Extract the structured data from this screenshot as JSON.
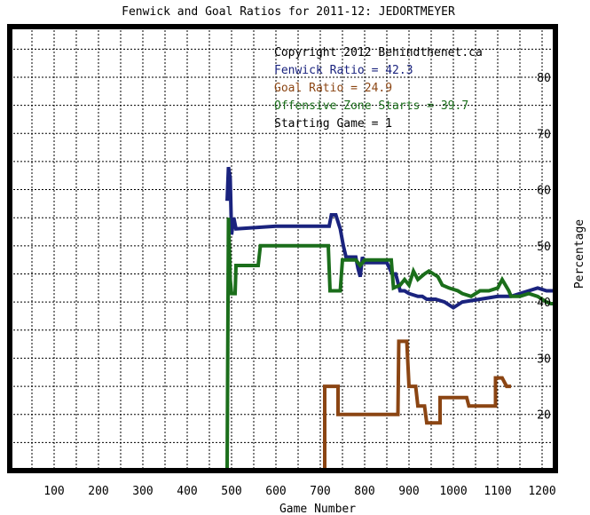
{
  "chart_data": {
    "type": "line",
    "title": "Fenwick and Goal Ratios for 2011-12: JEDORTMEYER",
    "xlabel": "Game Number",
    "ylabel": "Percentage",
    "xlim": [
      0,
      1230
    ],
    "ylim": [
      10,
      89
    ],
    "x_ticks": [
      100,
      200,
      300,
      400,
      500,
      600,
      700,
      800,
      900,
      1000,
      1100,
      1200
    ],
    "y_ticks": [
      20,
      30,
      40,
      50,
      60,
      70,
      80
    ],
    "x_grid": [
      50,
      150,
      250,
      350,
      450,
      550,
      650,
      750,
      850,
      950,
      1050,
      1150
    ],
    "y_grid": [
      15,
      20,
      25,
      30,
      35,
      40,
      45,
      50,
      55,
      60,
      65,
      70,
      75,
      80,
      85
    ],
    "grid": true,
    "legend": [
      {
        "text": "Copyright 2012 Behindthenet.ca",
        "color": "#000000"
      },
      {
        "text": "Fenwick Ratio = 42.3",
        "color": "#1a237e"
      },
      {
        "text": "Goal Ratio = 24.9",
        "color": "#8b4513"
      },
      {
        "text": "Offensive Zone Starts = 39.7",
        "color": "#1b6e1b"
      },
      {
        "text": "Starting Game = 1",
        "color": "#000000"
      }
    ],
    "series": [
      {
        "color": "#1a237e",
        "points": [
          [
            490,
            58
          ],
          [
            493,
            64
          ],
          [
            497,
            62
          ],
          [
            500,
            52
          ],
          [
            505,
            55
          ],
          [
            510,
            53
          ],
          [
            600,
            53.5
          ],
          [
            700,
            53.5
          ],
          [
            720,
            53.5
          ],
          [
            725,
            55.5
          ],
          [
            735,
            55.5
          ],
          [
            745,
            53
          ],
          [
            752,
            50
          ],
          [
            758,
            48
          ],
          [
            765,
            48
          ],
          [
            770,
            48
          ],
          [
            780,
            48
          ],
          [
            785,
            46
          ],
          [
            790,
            44.5
          ],
          [
            795,
            48
          ],
          [
            800,
            47
          ],
          [
            850,
            47
          ],
          [
            862,
            45
          ],
          [
            870,
            45
          ],
          [
            875,
            43.5
          ],
          [
            880,
            42
          ],
          [
            890,
            42
          ],
          [
            900,
            41.5
          ],
          [
            920,
            41
          ],
          [
            930,
            41
          ],
          [
            940,
            40.5
          ],
          [
            960,
            40.5
          ],
          [
            980,
            40
          ],
          [
            1000,
            39
          ],
          [
            1020,
            40
          ],
          [
            1060,
            40.5
          ],
          [
            1100,
            41
          ],
          [
            1130,
            41
          ],
          [
            1150,
            41.5
          ],
          [
            1170,
            42
          ],
          [
            1190,
            42.5
          ],
          [
            1210,
            42
          ],
          [
            1230,
            42
          ]
        ]
      },
      {
        "color": "#1b6e1b",
        "points": [
          [
            490,
            10
          ],
          [
            493,
            55
          ],
          [
            497,
            44
          ],
          [
            500,
            41.5
          ],
          [
            508,
            41.5
          ],
          [
            510,
            46.5
          ],
          [
            560,
            46.5
          ],
          [
            565,
            50
          ],
          [
            700,
            50
          ],
          [
            718,
            50
          ],
          [
            722,
            42
          ],
          [
            745,
            42
          ],
          [
            750,
            47.5
          ],
          [
            780,
            47.5
          ],
          [
            790,
            46.5
          ],
          [
            800,
            47.5
          ],
          [
            860,
            47.5
          ],
          [
            865,
            42.5
          ],
          [
            880,
            43
          ],
          [
            890,
            44
          ],
          [
            900,
            43
          ],
          [
            910,
            45.5
          ],
          [
            920,
            44
          ],
          [
            935,
            45
          ],
          [
            945,
            45.5
          ],
          [
            955,
            45
          ],
          [
            965,
            44.5
          ],
          [
            975,
            43
          ],
          [
            990,
            42.5
          ],
          [
            1010,
            42
          ],
          [
            1020,
            41.5
          ],
          [
            1040,
            41
          ],
          [
            1060,
            42
          ],
          [
            1080,
            42
          ],
          [
            1100,
            42.5
          ],
          [
            1110,
            44
          ],
          [
            1125,
            42
          ],
          [
            1130,
            41
          ],
          [
            1150,
            41
          ],
          [
            1170,
            41.5
          ],
          [
            1190,
            41
          ],
          [
            1200,
            40.5
          ],
          [
            1210,
            40
          ],
          [
            1220,
            39.7
          ],
          [
            1230,
            39.7
          ]
        ]
      },
      {
        "color": "#8b4513",
        "points": [
          [
            710,
            10
          ],
          [
            710,
            25
          ],
          [
            740,
            25
          ],
          [
            740,
            20
          ],
          [
            800,
            20
          ],
          [
            875,
            20
          ],
          [
            875,
            20
          ],
          [
            877,
            33
          ],
          [
            895,
            33
          ],
          [
            900,
            25
          ],
          [
            915,
            25
          ],
          [
            920,
            21.5
          ],
          [
            935,
            21.5
          ],
          [
            940,
            18.5
          ],
          [
            970,
            18.5
          ],
          [
            970,
            23
          ],
          [
            1030,
            23
          ],
          [
            1035,
            21.5
          ],
          [
            1095,
            21.5
          ],
          [
            1095,
            26.5
          ],
          [
            1110,
            26.5
          ],
          [
            1120,
            25
          ],
          [
            1130,
            25
          ]
        ]
      }
    ]
  }
}
